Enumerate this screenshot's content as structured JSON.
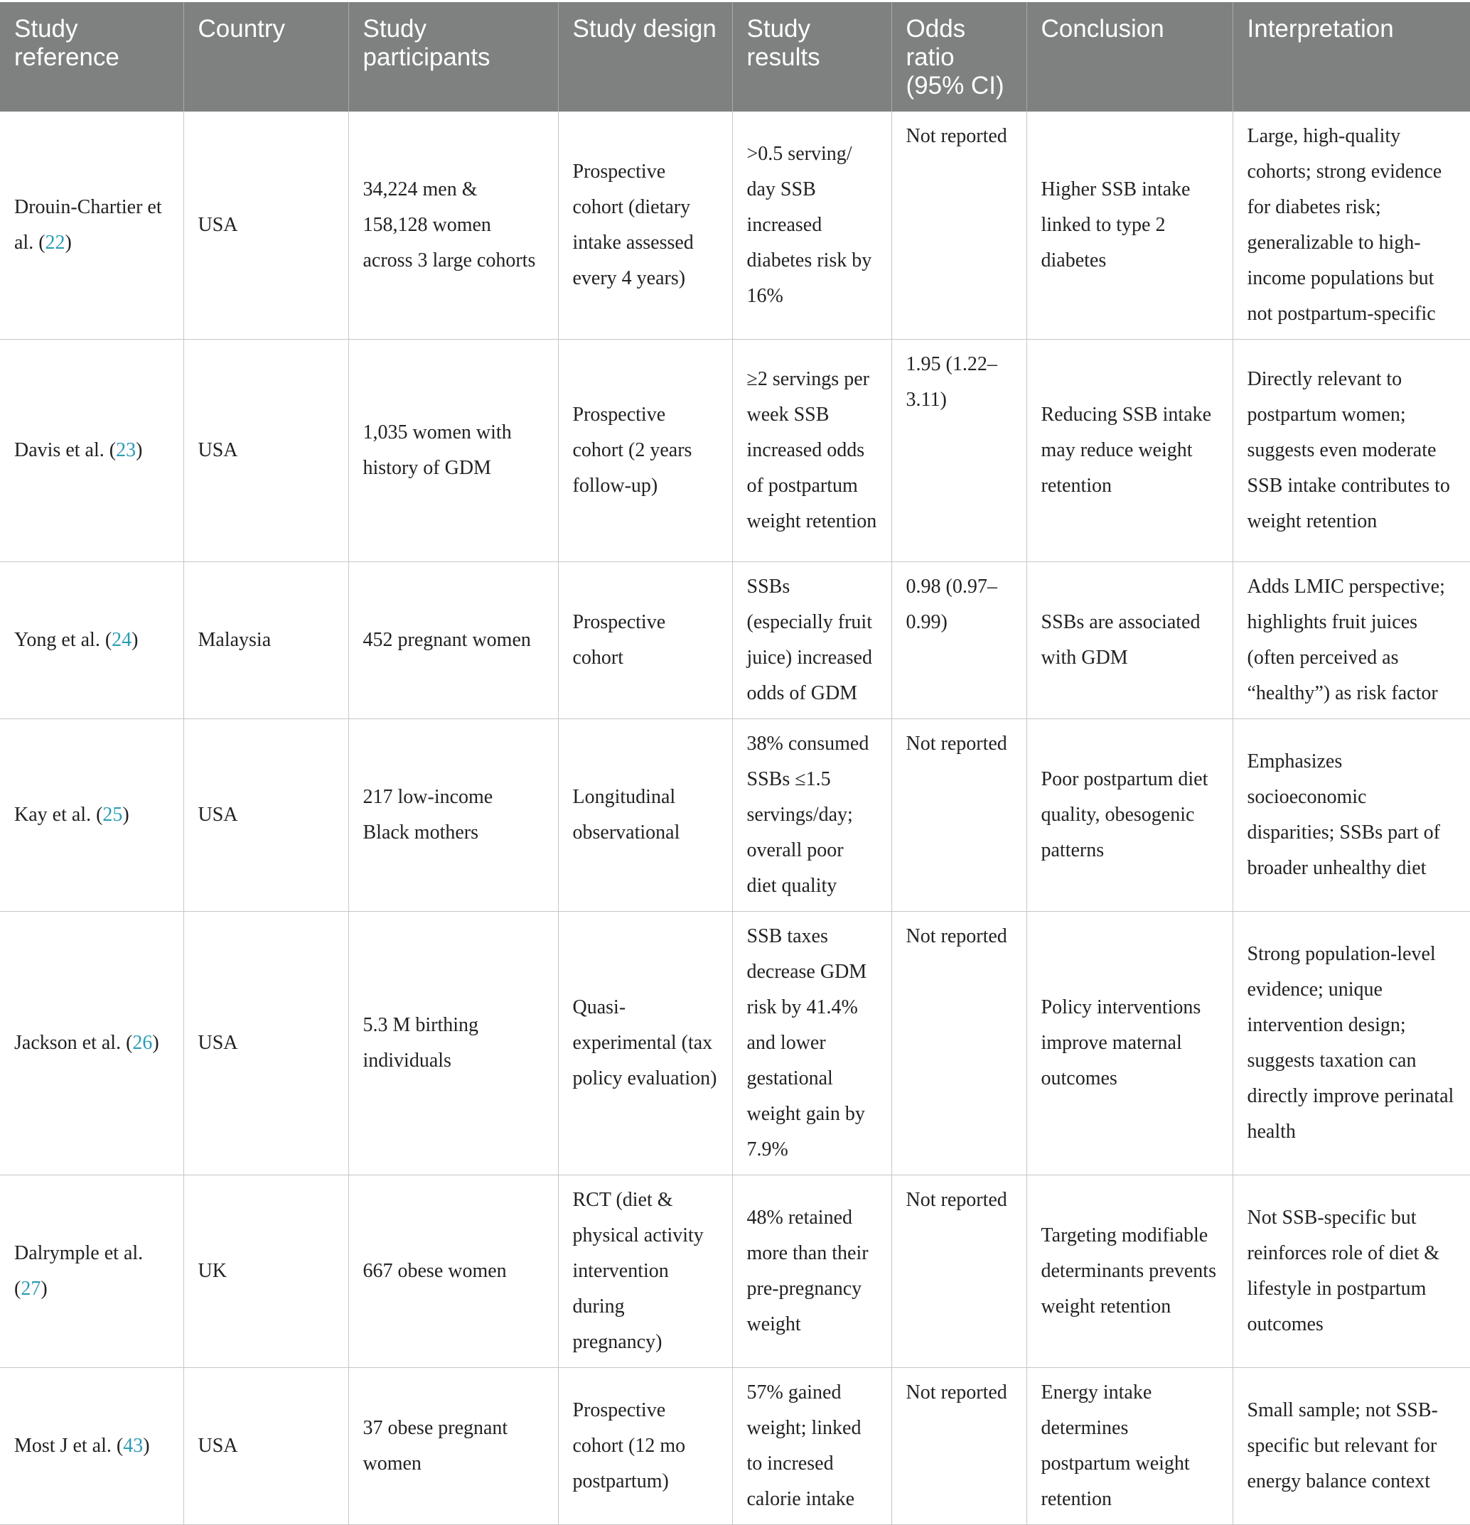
{
  "headers": [
    "Study reference",
    "Country",
    "Study participants",
    "Study design",
    "Study results",
    "Odds ratio (95% CI)",
    "Conclusion",
    "Interpretation"
  ],
  "rows": [
    {
      "ref_author": "Drouin-Chartier et al. (",
      "ref_num": "22",
      "ref_close": ")",
      "country": "USA",
      "participants": "34,224 men & 158,128 women across 3 large cohorts",
      "design": "Prospective cohort (dietary intake assessed every 4 years)",
      "results": ">0.5 serving/ day SSB increased diabetes risk by 16%",
      "odds": "Not reported",
      "conclusion": "Higher SSB intake linked to type 2 diabetes",
      "interpretation": "Large, high-quality cohorts; strong evidence for diabetes risk; generalizable to high-income populations but not postpartum-specific"
    },
    {
      "ref_author": "Davis et al. (",
      "ref_num": "23",
      "ref_close": ")",
      "country": "USA",
      "participants": "1,035 women with history of GDM",
      "design": "Prospective cohort (2 years follow-up)",
      "results": "≥2 servings per week SSB increased odds of postpartum weight retention",
      "odds": "1.95 (1.22–3.11)",
      "conclusion": "Reducing SSB intake may reduce weight retention",
      "interpretation": "Directly relevant to postpartum women; suggests even moderate SSB intake contributes to weight retention"
    },
    {
      "ref_author": "Yong et al. (",
      "ref_num": "24",
      "ref_close": ")",
      "country": "Malaysia",
      "participants": "452 pregnant women",
      "design": "Prospective cohort",
      "results": "SSBs (especially fruit juice) increased odds of GDM",
      "odds": "0.98 (0.97–0.99)",
      "conclusion": "SSBs are associated with GDM",
      "interpretation": "Adds LMIC perspective; highlights fruit juices (often perceived as “healthy”) as risk factor"
    },
    {
      "ref_author": "Kay et al. (",
      "ref_num": "25",
      "ref_close": ")",
      "country": "USA",
      "participants": "217 low-income Black mothers",
      "design": "Longitudinal observational",
      "results": "38% consumed SSBs ≤1.5 servings/day; overall poor diet quality",
      "odds": "Not reported",
      "conclusion": "Poor postpartum diet quality, obesogenic patterns",
      "interpretation": "Emphasizes socioeconomic disparities; SSBs part of broader unhealthy diet"
    },
    {
      "ref_author": "Jackson et al. (",
      "ref_num": "26",
      "ref_close": ")",
      "country": "USA",
      "participants": "5.3 M birthing individuals",
      "design": "Quasi-experimental (tax policy evaluation)",
      "results": "SSB taxes decrease GDM risk by 41.4% and lower gestational weight gain by 7.9%",
      "odds": "Not reported",
      "conclusion": "Policy interventions improve maternal outcomes",
      "interpretation": "Strong population-level evidence; unique intervention design; suggests taxation can directly improve perinatal health"
    },
    {
      "ref_author": "Dalrymple et al. (",
      "ref_num": "27",
      "ref_close": ")",
      "country": "UK",
      "participants": "667 obese women",
      "design": "RCT (diet & physical activity intervention during pregnancy)",
      "results": "48% retained more than their pre-pregnancy weight",
      "odds": "Not reported",
      "conclusion": "Targeting modifiable determinants prevents weight retention",
      "interpretation": "Not SSB-specific but reinforces role of diet & lifestyle in postpartum outcomes"
    },
    {
      "ref_author": "Most J et al. (",
      "ref_num": "43",
      "ref_close": ")",
      "country": "USA",
      "participants": "37 obese pregnant women",
      "design": "Prospective cohort (12 mo postpartum)",
      "results": "57% gained weight; linked to incresed calorie intake",
      "odds": "Not reported",
      "conclusion": "Energy intake determines postpartum weight retention",
      "interpretation": "Small sample; not SSB-specific but relevant for energy balance context"
    }
  ]
}
